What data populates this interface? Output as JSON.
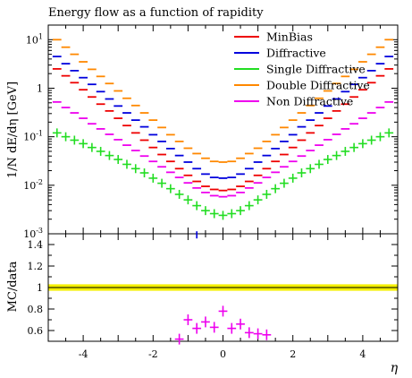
{
  "chart_data": [
    {
      "type": "line",
      "title": "Energy flow as a function of rapidity",
      "ylabel": "1/N dE/dη [GeV]",
      "xlabel": "η",
      "ylog": true,
      "xlim": [
        -5,
        5
      ],
      "ylim": [
        0.001,
        20
      ],
      "ytick_labels": [
        "10^-3",
        "10^-2",
        "10^-1",
        "1",
        "10^1"
      ],
      "legend_position": "top-right",
      "x": [
        -4.75,
        -4.5,
        -4.25,
        -4.0,
        -3.75,
        -3.5,
        -3.25,
        -3.0,
        -2.75,
        -2.5,
        -2.25,
        -2.0,
        -1.75,
        -1.5,
        -1.25,
        -1.0,
        -0.75,
        -0.5,
        -0.25,
        0.0,
        0.25,
        0.5,
        0.75,
        1.0,
        1.25,
        1.5,
        1.75,
        2.0,
        2.25,
        2.5,
        2.75,
        3.0,
        3.25,
        3.5,
        3.75,
        4.0,
        4.25,
        4.5,
        4.75
      ],
      "series": [
        {
          "name": "MinBias",
          "color": "#ee0000",
          "marker": "dash",
          "values": [
            2.5,
            1.8,
            1.3,
            0.93,
            0.66,
            0.47,
            0.34,
            0.24,
            0.17,
            0.12,
            0.085,
            0.06,
            0.043,
            0.031,
            0.022,
            0.016,
            0.012,
            0.0095,
            0.0082,
            0.0078,
            0.0082,
            0.0095,
            0.012,
            0.016,
            0.022,
            0.031,
            0.043,
            0.06,
            0.085,
            0.12,
            0.17,
            0.24,
            0.34,
            0.47,
            0.66,
            0.93,
            1.3,
            1.8,
            2.5
          ]
        },
        {
          "name": "Diffractive",
          "color": "#0000dd",
          "marker": "dash",
          "values": [
            4.5,
            3.2,
            2.3,
            1.65,
            1.2,
            0.85,
            0.6,
            0.43,
            0.31,
            0.22,
            0.16,
            0.11,
            0.08,
            0.057,
            0.041,
            0.03,
            0.022,
            0.017,
            0.0145,
            0.014,
            0.0145,
            0.017,
            0.022,
            0.03,
            0.041,
            0.057,
            0.08,
            0.11,
            0.16,
            0.22,
            0.31,
            0.43,
            0.6,
            0.85,
            1.2,
            1.65,
            2.3,
            3.2,
            4.5
          ]
        },
        {
          "name": "Single Diffractive",
          "color": "#22dd22",
          "marker": "cross",
          "values": [
            0.12,
            0.1,
            0.085,
            0.072,
            0.06,
            0.05,
            0.041,
            0.034,
            0.027,
            0.022,
            0.018,
            0.014,
            0.011,
            0.0085,
            0.0065,
            0.005,
            0.0038,
            0.003,
            0.0026,
            0.0024,
            0.0026,
            0.003,
            0.0038,
            0.005,
            0.0065,
            0.0085,
            0.011,
            0.014,
            0.018,
            0.022,
            0.027,
            0.034,
            0.041,
            0.05,
            0.06,
            0.072,
            0.085,
            0.1,
            0.12
          ]
        },
        {
          "name": "Double Diffractive",
          "color": "#ff8800",
          "marker": "dash",
          "values": [
            10.0,
            7.0,
            5.0,
            3.5,
            2.45,
            1.75,
            1.25,
            0.88,
            0.62,
            0.44,
            0.31,
            0.22,
            0.155,
            0.11,
            0.08,
            0.058,
            0.045,
            0.036,
            0.031,
            0.03,
            0.031,
            0.036,
            0.045,
            0.058,
            0.08,
            0.11,
            0.155,
            0.22,
            0.31,
            0.44,
            0.62,
            0.88,
            1.25,
            1.75,
            2.45,
            3.5,
            5.0,
            7.0,
            10.0
          ]
        },
        {
          "name": "Non Diffractive",
          "color": "#ee00ee",
          "marker": "dash",
          "values": [
            0.52,
            0.4,
            0.31,
            0.24,
            0.185,
            0.145,
            0.112,
            0.087,
            0.067,
            0.052,
            0.04,
            0.031,
            0.024,
            0.0185,
            0.0145,
            0.0112,
            0.0088,
            0.0071,
            0.0061,
            0.0058,
            0.0061,
            0.0071,
            0.0088,
            0.0112,
            0.0145,
            0.0185,
            0.024,
            0.031,
            0.04,
            0.052,
            0.067,
            0.087,
            0.112,
            0.145,
            0.185,
            0.24,
            0.31,
            0.4,
            0.52
          ]
        }
      ]
    },
    {
      "type": "scatter",
      "ylabel": "MC/data",
      "xlabel": "η",
      "xlim": [
        -5,
        5
      ],
      "ylim": [
        0.5,
        1.5
      ],
      "xticks": [
        -4,
        -2,
        0,
        2,
        4
      ],
      "yticks": [
        0.6,
        0.8,
        1,
        1.2,
        1.4
      ],
      "reference": 1,
      "band": {
        "lo": 0.97,
        "hi": 1.03,
        "color": "#f5f000"
      },
      "series": [
        {
          "name": "Non Diffractive",
          "color": "#ee00ee",
          "marker": "cross",
          "x": [
            -1.25,
            -1.0,
            -0.75,
            -0.5,
            -0.25,
            0.0,
            0.25,
            0.5,
            0.75,
            1.0,
            1.25
          ],
          "values": [
            0.52,
            0.7,
            0.62,
            0.68,
            0.63,
            0.78,
            0.62,
            0.66,
            0.58,
            0.57,
            0.56
          ]
        },
        {
          "name": "Diffractive",
          "color": "#0000dd",
          "marker": "dash",
          "x": [
            -0.75
          ],
          "values": [
            1.49
          ]
        }
      ]
    }
  ]
}
